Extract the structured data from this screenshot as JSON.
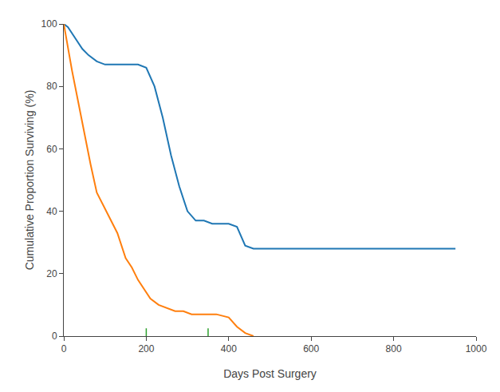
{
  "chart_data": {
    "type": "line",
    "xlabel": "Days Post Surgery",
    "ylabel": "Cumulative Proportion Surviving (%)",
    "xlim": [
      0,
      1000
    ],
    "ylim": [
      0,
      100
    ],
    "xticks": [
      0,
      200,
      400,
      600,
      800,
      1000
    ],
    "yticks": [
      0,
      20,
      40,
      60,
      80,
      100
    ],
    "grid": false,
    "series": [
      {
        "x": [
          0,
          10,
          20,
          30,
          45,
          60,
          80,
          100,
          120,
          140,
          160,
          180,
          200,
          220,
          240,
          260,
          280,
          300,
          320,
          340,
          360,
          380,
          400,
          420,
          440,
          460,
          480,
          500,
          950
        ],
        "values": [
          100,
          99,
          97,
          95,
          92,
          90,
          88,
          87,
          87,
          87,
          87,
          87,
          86,
          80,
          70,
          58,
          48,
          40,
          37,
          37,
          36,
          36,
          36,
          35,
          29,
          28,
          28,
          28,
          28
        ]
      },
      {
        "x": [
          0,
          10,
          20,
          35,
          50,
          65,
          80,
          95,
          110,
          130,
          150,
          165,
          180,
          195,
          210,
          230,
          250,
          270,
          290,
          310,
          340,
          370,
          400,
          420,
          440,
          460
        ],
        "values": [
          100,
          92,
          85,
          75,
          65,
          55,
          46,
          42,
          38,
          33,
          25,
          22,
          18,
          15,
          12,
          10,
          9,
          8,
          8,
          7,
          7,
          7,
          6,
          3,
          1,
          0
        ]
      }
    ],
    "censor_x": [
      200,
      350
    ],
    "censor_y": [
      0,
      2.5
    ]
  }
}
